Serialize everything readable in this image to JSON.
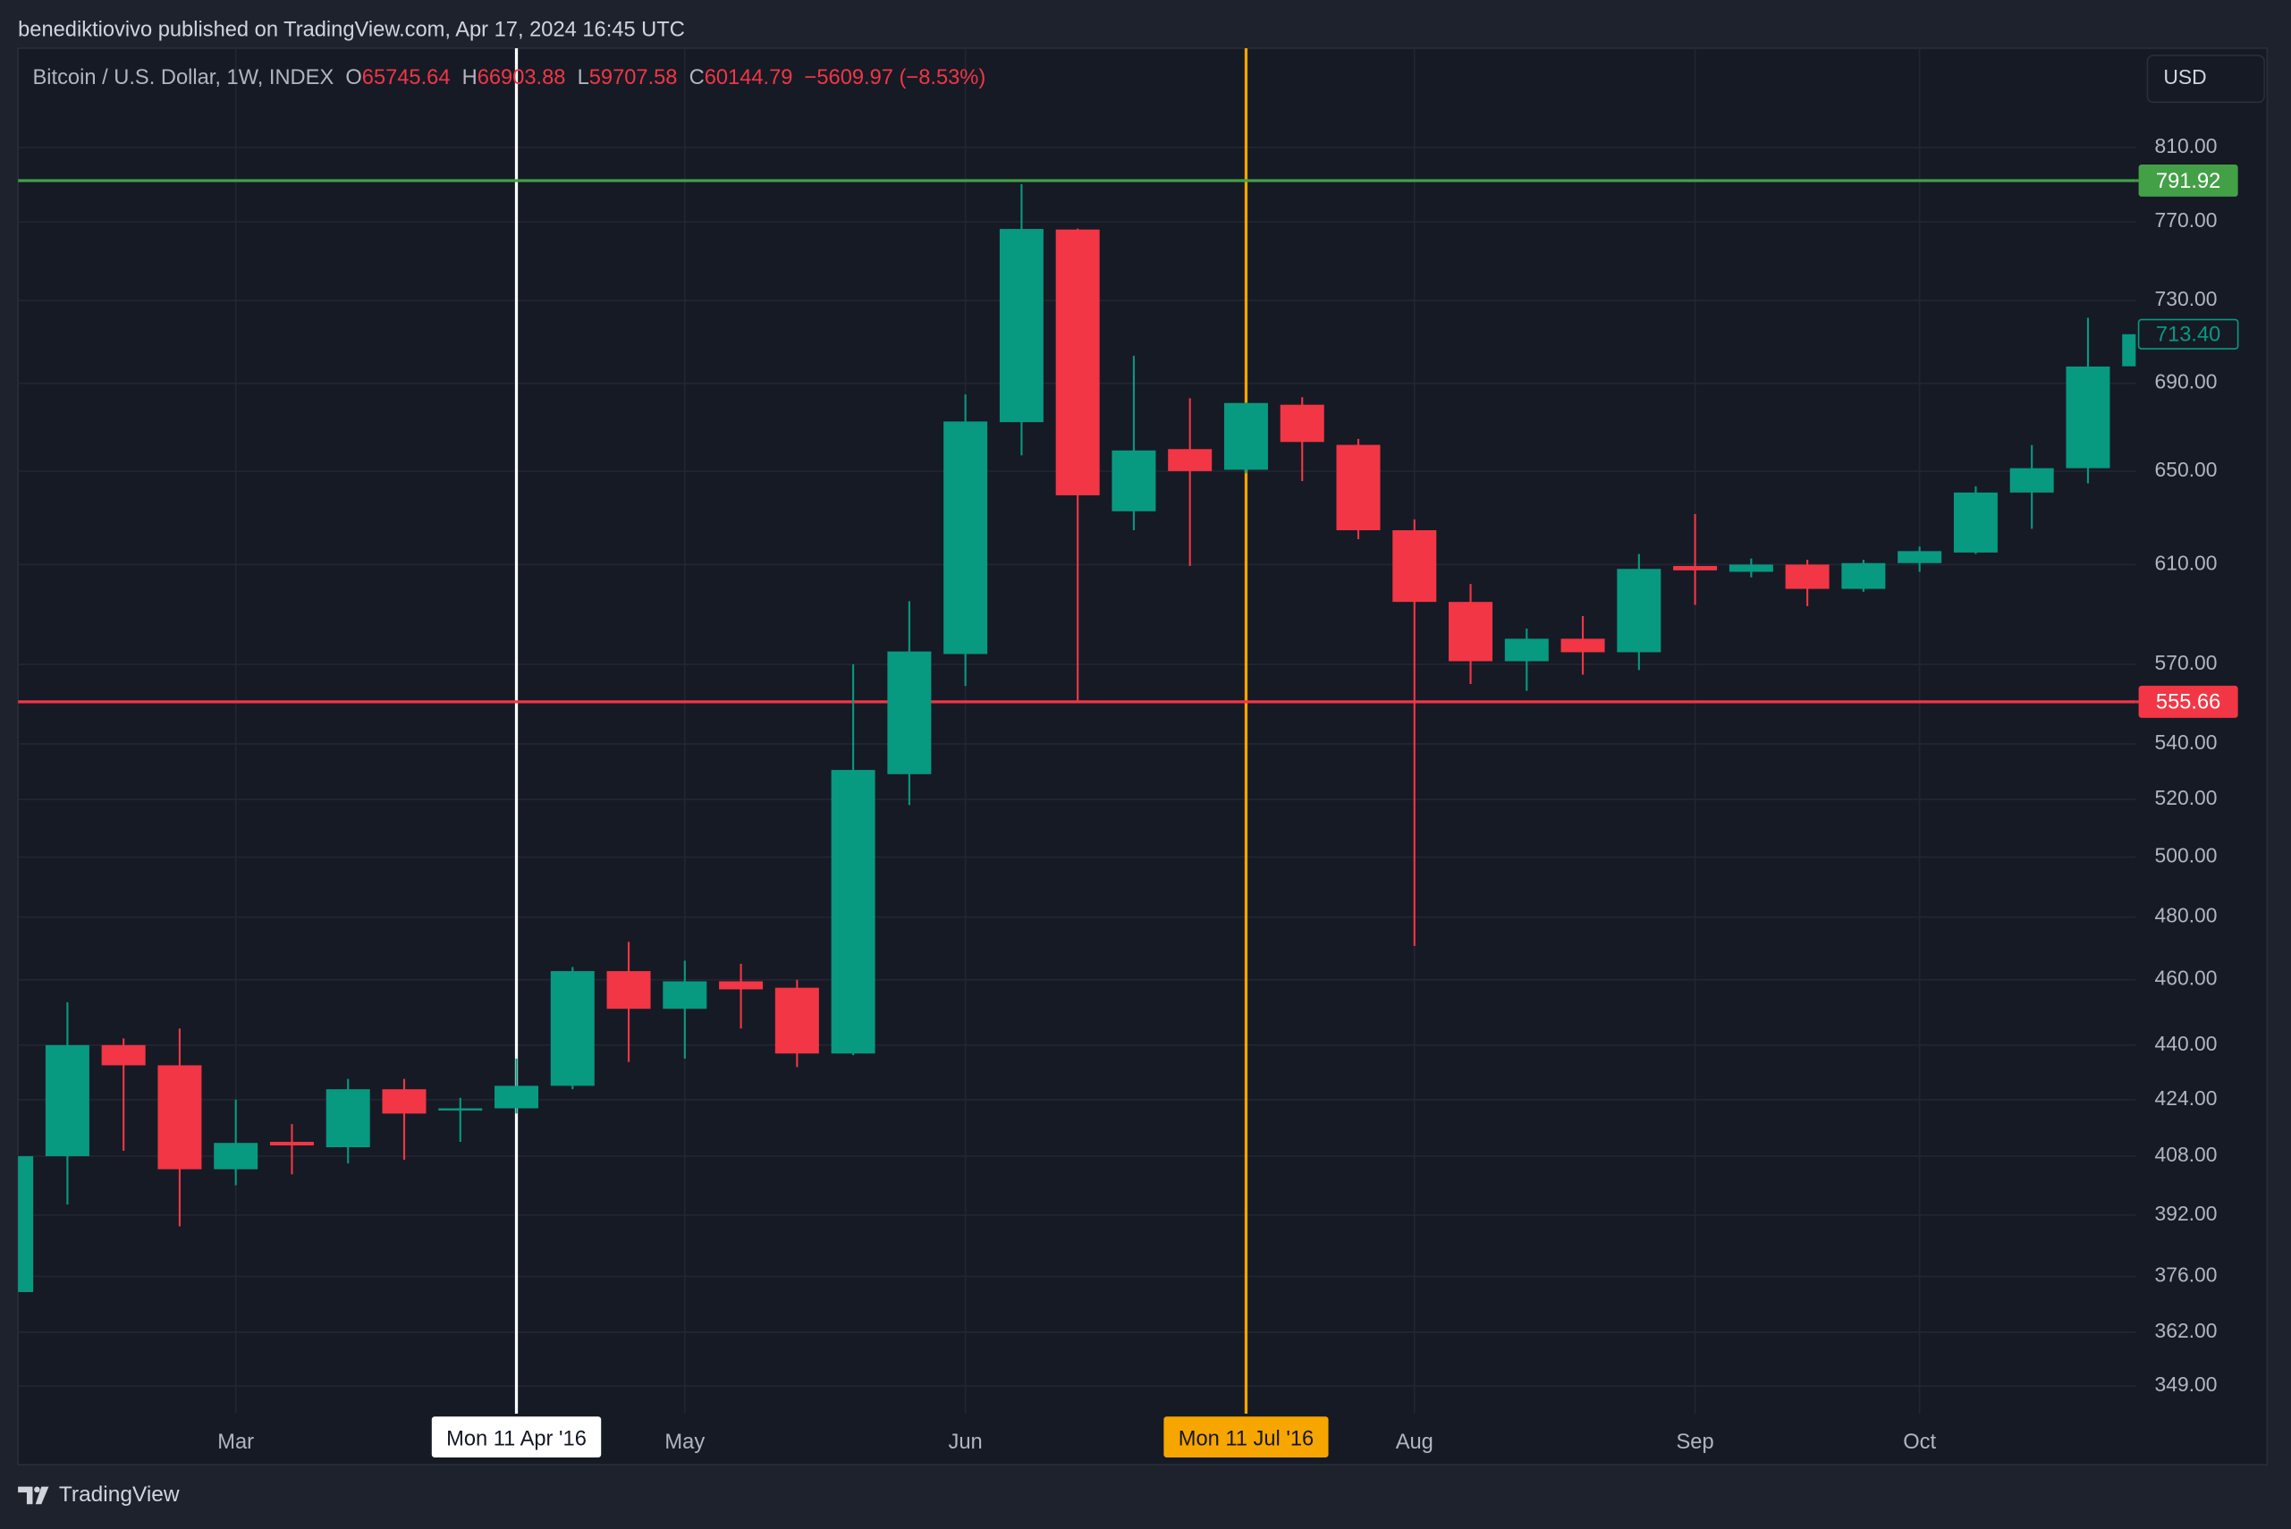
{
  "header": {
    "byline": "benediktiovivo published on TradingView.com, Apr 17, 2024 16:45 UTC"
  },
  "legend": {
    "symbol": "Bitcoin / U.S. Dollar, 1W, INDEX",
    "fields": [
      {
        "key": "O",
        "value": 65745.64
      },
      {
        "key": "H",
        "value": 66903.88
      },
      {
        "key": "L",
        "value": 59707.58
      },
      {
        "key": "C",
        "value": 60144.79
      }
    ],
    "change": "−5609.97 (−8.53%)"
  },
  "currency": "USD",
  "footer": {
    "brand": "TradingView"
  },
  "chart_data": {
    "type": "candlestick",
    "log_scale": true,
    "grid": true,
    "up_color": "#089981",
    "down_color": "#f23645",
    "x": [
      "2016-02-08",
      "2016-02-15",
      "2016-02-22",
      "2016-02-29",
      "2016-03-07",
      "2016-03-14",
      "2016-03-21",
      "2016-03-28",
      "2016-04-04",
      "2016-04-11",
      "2016-04-18",
      "2016-04-25",
      "2016-05-02",
      "2016-05-09",
      "2016-05-16",
      "2016-05-23",
      "2016-05-30",
      "2016-06-06",
      "2016-06-13",
      "2016-06-20",
      "2016-06-27",
      "2016-07-04",
      "2016-07-11",
      "2016-07-18",
      "2016-07-25",
      "2016-08-01",
      "2016-08-08",
      "2016-08-15",
      "2016-08-22",
      "2016-08-29",
      "2016-09-05",
      "2016-09-12",
      "2016-09-19",
      "2016-09-26",
      "2016-10-03",
      "2016-10-10",
      "2016-10-17",
      "2016-10-24",
      "2016-10-31"
    ],
    "open": [
      372,
      408,
      440,
      434,
      404.4,
      412,
      410.5,
      427,
      421,
      421.5,
      428,
      462.7,
      451,
      459.5,
      457.5,
      437.5,
      529,
      574,
      672,
      766,
      632.5,
      659.8,
      650.6,
      680,
      661.7,
      624.4,
      594.7,
      571.2,
      580,
      574.7,
      609.4,
      607,
      610,
      600,
      610.6,
      615,
      640.6,
      651.3,
      698
    ],
    "high": [
      410,
      453,
      442,
      445,
      424,
      417,
      430,
      430,
      424.5,
      436,
      464,
      472,
      466,
      465,
      460,
      570,
      595,
      684.8,
      790,
      766.5,
      703,
      683,
      681,
      683.5,
      664.4,
      629,
      602,
      584,
      589,
      614.4,
      631.3,
      612.5,
      612,
      612,
      617.5,
      643.3,
      661.6,
      721.4,
      713.4
    ],
    "low": [
      370,
      394.8,
      409.5,
      389,
      400,
      403,
      406,
      407,
      412,
      420,
      427,
      435,
      436,
      445,
      433.5,
      437,
      518,
      561.7,
      657,
      555.66,
      624.4,
      609.4,
      649,
      645.6,
      620.6,
      470.7,
      562.4,
      559.8,
      566,
      567.8,
      593.5,
      604.7,
      593,
      598.8,
      607,
      614.4,
      625,
      644.6,
      698
    ],
    "close": [
      408,
      440,
      434,
      404.4,
      411.7,
      411,
      427,
      420,
      421.5,
      428,
      462.7,
      451,
      459.5,
      457,
      437.5,
      530.5,
      575,
      672.3,
      766.3,
      639.4,
      659.2,
      650,
      680.8,
      663,
      624.4,
      594.7,
      571.2,
      580,
      574.7,
      608.2,
      607.6,
      610,
      600,
      610.6,
      615.6,
      640.6,
      651.3,
      697.9,
      713.4
    ],
    "ylim": [
      342.5,
      866.5
    ],
    "yticks": [
      {
        "value": 810,
        "label": "810.00"
      },
      {
        "value": 770,
        "label": "770.00"
      },
      {
        "value": 730,
        "label": "730.00"
      },
      {
        "value": 690,
        "label": "690.00"
      },
      {
        "value": 650,
        "label": "650.00"
      },
      {
        "value": 610,
        "label": "610.00"
      },
      {
        "value": 570,
        "label": "570.00"
      },
      {
        "value": 540,
        "label": "540.00"
      },
      {
        "value": 520,
        "label": "520.00"
      },
      {
        "value": 500,
        "label": "500.00"
      },
      {
        "value": 480,
        "label": "480.00"
      },
      {
        "value": 460,
        "label": "460.00"
      },
      {
        "value": 440,
        "label": "440.00"
      },
      {
        "value": 424,
        "label": "424.00"
      },
      {
        "value": 408,
        "label": "408.00"
      },
      {
        "value": 392,
        "label": "392.00"
      },
      {
        "value": 376,
        "label": "376.00"
      },
      {
        "value": 362,
        "label": "362.00"
      },
      {
        "value": 349,
        "label": "349.00"
      }
    ],
    "xticks": [
      {
        "value": "2016-03-07",
        "label": "Mar"
      },
      {
        "value": "2016-05-02",
        "label": "May"
      },
      {
        "value": "2016-06-06",
        "label": "Jun"
      },
      {
        "value": "2016-08-01",
        "label": "Aug"
      },
      {
        "value": "2016-09-05",
        "label": "Sep"
      },
      {
        "value": "2016-10-03",
        "label": "Oct"
      }
    ],
    "hlines": [
      {
        "value": 791.92,
        "color": "#43a047"
      },
      {
        "value": 555.66,
        "color": "#f23645"
      }
    ],
    "last_price": {
      "value": 713.4,
      "label": "713.40"
    },
    "crosshairs": [
      {
        "x": "2016-04-11",
        "label": "Mon 11 Apr '16",
        "color": "#ffffff"
      },
      {
        "x": "2016-07-11",
        "label": "Mon 11 Jul '16",
        "color": "#f7a600"
      }
    ]
  }
}
